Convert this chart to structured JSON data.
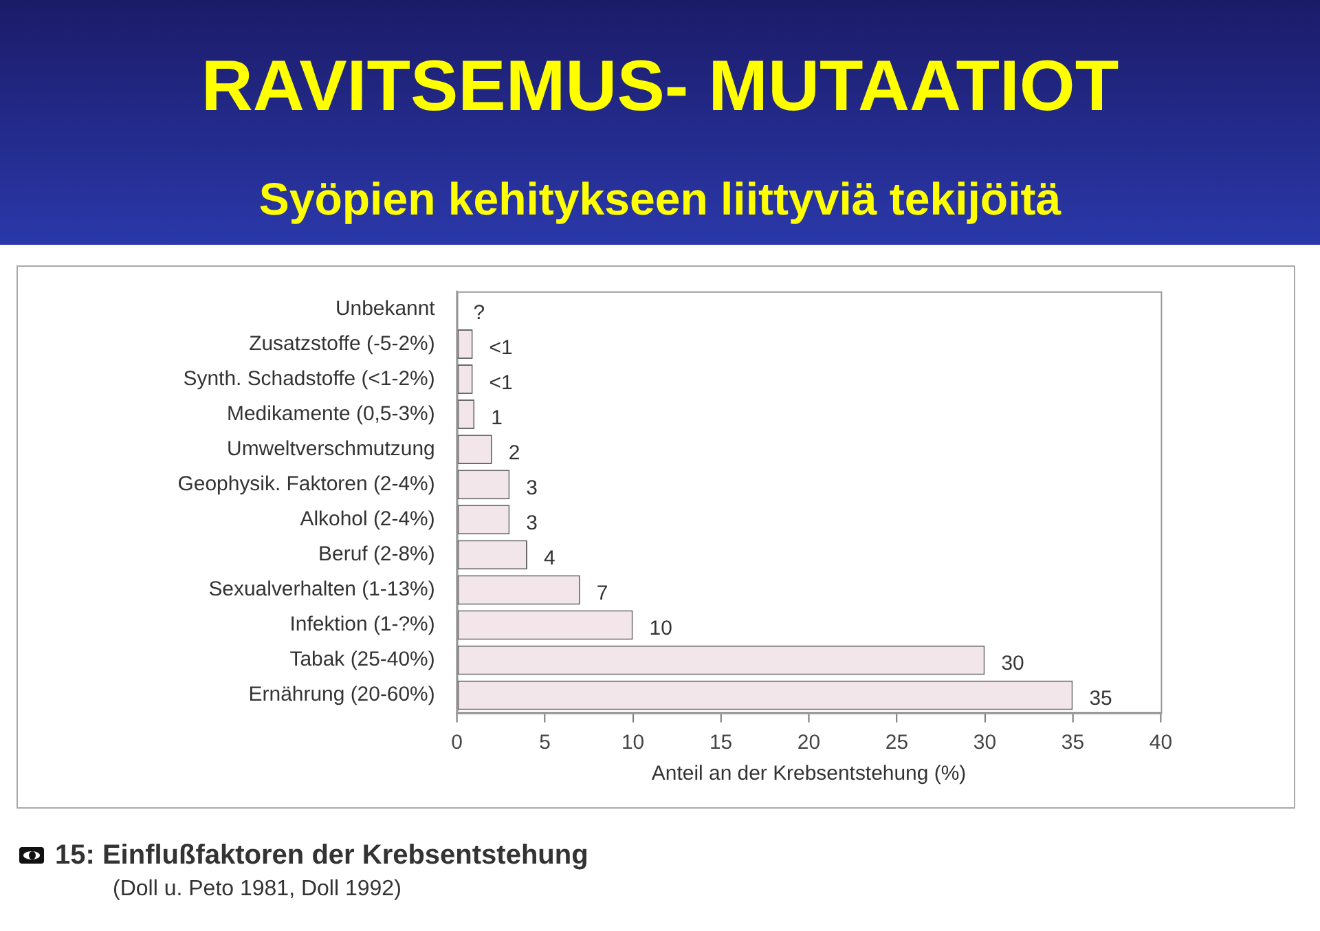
{
  "chart_data": {
    "type": "bar",
    "orientation": "horizontal",
    "title": "RAVITSEMUS- MUTAATIOT",
    "subtitle": "Syöpien kehitykseen liittyviä tekijöitä",
    "xlabel": "Anteil an der Krebsentstehung (%)",
    "categories": [
      "Unbekannt",
      "Zusatzstoffe (-5-2%)",
      "Synth. Schadstoffe (<1-2%)",
      "Medikamente (0,5-3%)",
      "Umweltverschmutzung",
      "Geophysik. Faktoren (2-4%)",
      "Alkohol (2-4%)",
      "Beruf (2-8%)",
      "Sexualverhalten (1-13%)",
      "Infektion (1-?%)",
      "Tabak (25-40%)",
      "Ernährung (20-60%)"
    ],
    "values": [
      null,
      0.9,
      0.9,
      1,
      2,
      3,
      3,
      4,
      7,
      10,
      30,
      35
    ],
    "value_labels": [
      "?",
      "<1",
      "<1",
      "1",
      "2",
      "3",
      "3",
      "4",
      "7",
      "10",
      "30",
      "35"
    ],
    "color": "#f3e6ea",
    "xlim": [
      0,
      40
    ],
    "xticks": [
      0,
      5,
      10,
      15,
      20,
      25,
      30,
      35,
      40
    ],
    "annotations": [
      "15: Einflußfaktoren der Krebsentstehung",
      "(Doll u. Peto 1981, Doll 1992)"
    ]
  }
}
